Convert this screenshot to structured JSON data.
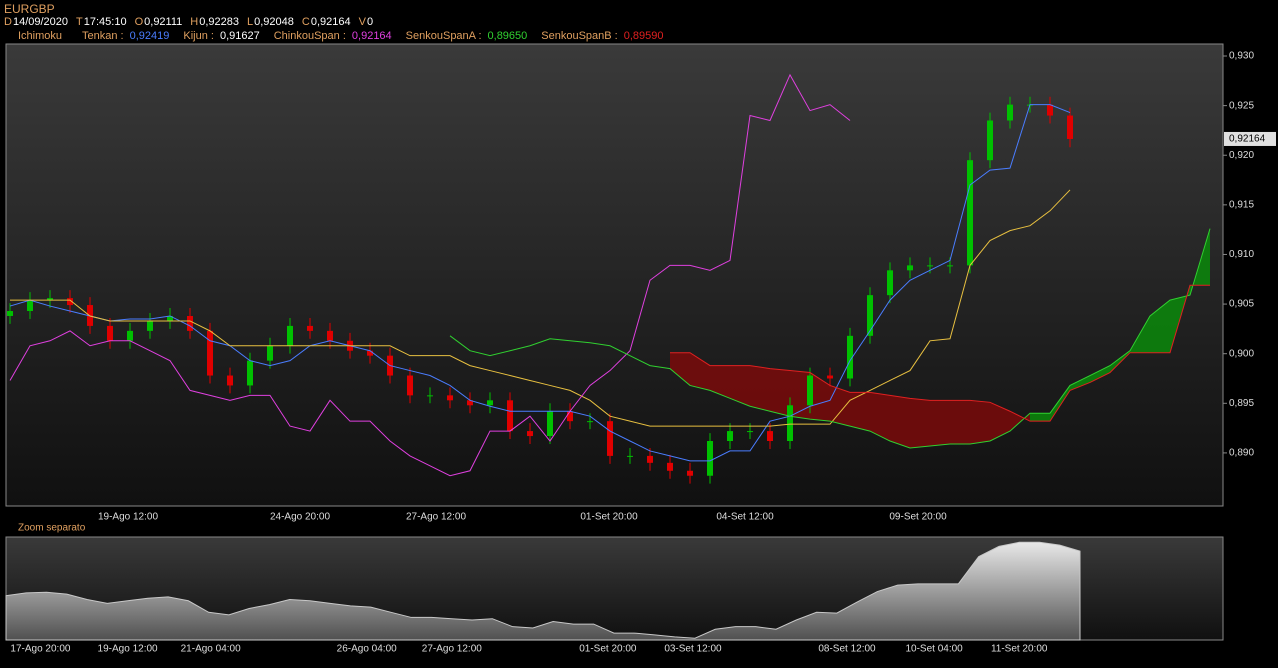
{
  "header": {
    "symbol": "EURGBP",
    "fields": [
      {
        "key": "D",
        "value": "14/09/2020"
      },
      {
        "key": "T",
        "value": "17:45:10"
      },
      {
        "key": "O",
        "value": "0,92111"
      },
      {
        "key": "H",
        "value": "0,92283"
      },
      {
        "key": "L",
        "value": "0,92048"
      },
      {
        "key": "C",
        "value": "0,92164"
      },
      {
        "key": "V",
        "value": "0"
      }
    ]
  },
  "legend": {
    "title": "Ichimoku",
    "items": [
      {
        "label": "Tenkan :",
        "value": "0,92419",
        "color": "#4a7dff",
        "text_color": "#4a7dff",
        "values": [
          0.9048,
          0.9054,
          0.9048,
          0.9043,
          0.9038,
          0.9033,
          0.9035,
          0.9035,
          0.9038,
          0.9028,
          0.9013,
          0.9008,
          0.8993,
          0.8988,
          0.8993,
          0.9008,
          0.9013,
          0.9008,
          0.9003,
          0.8988,
          0.8983,
          0.8978,
          0.8968,
          0.8953,
          0.8947,
          0.8942,
          0.8942,
          0.8942,
          0.8942,
          0.8937,
          0.8922,
          0.8912,
          0.8902,
          0.8897,
          0.8892,
          0.8892,
          0.8902,
          0.8902,
          0.8932,
          0.8937,
          0.8947,
          0.8953,
          0.8993,
          0.9023,
          0.9054,
          0.9074,
          0.9084,
          0.9094,
          0.917,
          0.9185,
          0.9187,
          0.9251,
          0.9251,
          0.9243,
          null,
          null,
          null,
          null,
          null,
          null,
          null
        ]
      },
      {
        "label": "Kijun :",
        "value": "0,91627",
        "color": "#e8c040",
        "text_color": "#ffffff",
        "values": [
          0.9054,
          0.9054,
          0.9054,
          0.9054,
          0.9038,
          0.9033,
          0.9033,
          0.9033,
          0.9033,
          0.9033,
          0.9023,
          0.9008,
          0.9008,
          0.9008,
          0.9008,
          0.9008,
          0.9008,
          0.9008,
          0.9008,
          0.9008,
          0.8998,
          0.8998,
          0.8998,
          0.8988,
          0.8983,
          0.8978,
          0.8973,
          0.8968,
          0.8963,
          0.8953,
          0.8937,
          0.8932,
          0.8927,
          0.8927,
          0.8927,
          0.8927,
          0.8927,
          0.8927,
          0.8927,
          0.8929,
          0.8929,
          0.8929,
          0.8953,
          0.8963,
          0.8973,
          0.8983,
          0.9013,
          0.9015,
          0.9089,
          0.9114,
          0.9124,
          0.9129,
          0.9144,
          0.9165,
          null,
          null,
          null,
          null,
          null,
          null,
          null
        ]
      },
      {
        "label": "ChinkouSpan :",
        "value": "0,92164",
        "color": "#e040e0",
        "text_color": "#e040e0",
        "values": [
          0.8973,
          0.9008,
          0.9013,
          0.9023,
          0.9008,
          0.9013,
          0.9013,
          0.9003,
          0.8993,
          0.8963,
          0.8958,
          0.8953,
          0.8958,
          0.8958,
          0.8927,
          0.8922,
          0.8953,
          0.8932,
          0.8932,
          0.8912,
          0.8897,
          0.8887,
          0.8877,
          0.8882,
          0.8922,
          0.8922,
          0.8937,
          0.8912,
          0.8942,
          0.8968,
          0.8983,
          0.9003,
          0.9074,
          0.9089,
          0.9089,
          0.9084,
          0.9094,
          0.924,
          0.9235,
          0.9281,
          0.9245,
          0.9251,
          0.9235,
          null,
          null,
          null,
          null,
          null,
          null,
          null,
          null,
          null,
          null,
          null,
          null,
          null,
          null,
          null,
          null,
          null,
          null
        ]
      },
      {
        "label": "SenkouSpanA :",
        "value": "0,89650",
        "color": "#30d030",
        "text_color": "#30d030",
        "values": [
          null,
          null,
          null,
          null,
          null,
          null,
          null,
          null,
          null,
          null,
          null,
          null,
          null,
          null,
          null,
          null,
          null,
          null,
          null,
          null,
          null,
          null,
          0.9018,
          0.9003,
          0.8998,
          0.9003,
          0.9008,
          0.9015,
          0.9013,
          0.9011,
          0.9008,
          0.8998,
          0.8988,
          0.8985,
          0.8968,
          0.8963,
          0.8955,
          0.8947,
          0.8942,
          0.8937,
          0.8934,
          0.8932,
          0.8927,
          0.8922,
          0.8912,
          0.8905,
          0.8907,
          0.8909,
          0.8909,
          0.8912,
          0.8922,
          0.894,
          0.894,
          0.8968,
          0.8978,
          0.8988,
          0.9003,
          0.9038,
          0.9054,
          0.9059,
          0.9126
        ]
      },
      {
        "label": "SenkouSpanB :",
        "value": "0,89590",
        "color": "#e02020",
        "text_color": "#e02020",
        "values": [
          null,
          null,
          null,
          null,
          null,
          null,
          null,
          null,
          null,
          null,
          null,
          null,
          null,
          null,
          null,
          null,
          null,
          null,
          null,
          null,
          null,
          null,
          null,
          null,
          null,
          null,
          null,
          null,
          null,
          null,
          null,
          null,
          null,
          0.9001,
          0.9001,
          0.8988,
          0.8988,
          0.8988,
          0.8985,
          0.8983,
          0.8981,
          0.8968,
          0.8961,
          0.8961,
          0.8958,
          0.8955,
          0.8953,
          0.8953,
          0.8953,
          0.8951,
          0.8942,
          0.8932,
          0.8932,
          0.8963,
          0.8971,
          0.8981,
          0.9001,
          0.9001,
          0.9001,
          0.9069,
          0.9069
        ]
      }
    ]
  },
  "chart_data": {
    "type": "candlestick",
    "up_color": "#00c000",
    "down_color": "#e00000",
    "cloud_colors": {
      "up": "#0a8a0a",
      "down": "#7a0a0a"
    },
    "open": [
      0.9038,
      0.9043,
      0.9054,
      0.9056,
      0.9049,
      0.9028,
      0.9013,
      0.9023,
      0.9033,
      0.9038,
      0.9023,
      0.8978,
      0.8968,
      0.8993,
      0.9008,
      0.9028,
      0.9023,
      0.9013,
      0.9003,
      0.8998,
      0.8978,
      0.8958,
      0.8958,
      0.8953,
      0.8948,
      0.8953,
      0.8922,
      0.8917,
      0.8942,
      0.8932,
      0.8932,
      0.8897,
      0.8897,
      0.889,
      0.8882,
      0.8877,
      0.8912,
      0.8922,
      0.8922,
      0.8912,
      0.8948,
      0.8978,
      0.8975,
      0.9018,
      0.9059,
      0.9084,
      0.9089,
      0.9089,
      0.9089,
      0.9195,
      0.9235,
      0.9251,
      0.9251,
      0.924
    ],
    "high": [
      0.9051,
      0.9062,
      0.9064,
      0.9064,
      0.9057,
      0.9036,
      0.9031,
      0.9041,
      0.9046,
      0.9046,
      0.9031,
      0.8986,
      0.9001,
      0.9016,
      0.9036,
      0.9036,
      0.9031,
      0.9021,
      0.9011,
      0.9006,
      0.8986,
      0.8966,
      0.8966,
      0.8961,
      0.8961,
      0.8961,
      0.893,
      0.895,
      0.895,
      0.894,
      0.894,
      0.8905,
      0.8905,
      0.8898,
      0.889,
      0.892,
      0.893,
      0.893,
      0.893,
      0.8956,
      0.8986,
      0.8986,
      0.9026,
      0.9067,
      0.9092,
      0.9097,
      0.9097,
      0.9097,
      0.9203,
      0.9243,
      0.9259,
      0.9259,
      0.9259,
      0.9248
    ],
    "low": [
      0.903,
      0.9035,
      0.9046,
      0.9041,
      0.902,
      0.9005,
      0.9005,
      0.9015,
      0.9025,
      0.9015,
      0.897,
      0.896,
      0.896,
      0.8985,
      0.9,
      0.9015,
      0.9005,
      0.8995,
      0.899,
      0.897,
      0.895,
      0.895,
      0.8945,
      0.894,
      0.894,
      0.8914,
      0.8909,
      0.8909,
      0.8924,
      0.8924,
      0.8889,
      0.8889,
      0.8882,
      0.8874,
      0.8869,
      0.8869,
      0.8904,
      0.8914,
      0.8904,
      0.8904,
      0.894,
      0.8967,
      0.8967,
      0.901,
      0.9051,
      0.9076,
      0.9081,
      0.9081,
      0.9081,
      0.9187,
      0.9227,
      0.9243,
      0.9232,
      0.9208
    ],
    "close": [
      0.9043,
      0.9054,
      0.9056,
      0.9049,
      0.9028,
      0.9013,
      0.9023,
      0.9033,
      0.9038,
      0.9023,
      0.8978,
      0.8968,
      0.8993,
      0.9008,
      0.9028,
      0.9023,
      0.9013,
      0.9003,
      0.8998,
      0.8978,
      0.8958,
      0.8958,
      0.8953,
      0.8948,
      0.8953,
      0.8922,
      0.8917,
      0.8942,
      0.8932,
      0.8932,
      0.8897,
      0.8897,
      0.889,
      0.8882,
      0.8877,
      0.8912,
      0.8922,
      0.8922,
      0.8912,
      0.8948,
      0.8978,
      0.8975,
      0.9018,
      0.9059,
      0.9084,
      0.9089,
      0.9089,
      0.9089,
      0.9195,
      0.9235,
      0.9251,
      0.9251,
      0.924,
      0.92164
    ],
    "ylim": [
      0.88465,
      0.93121
    ],
    "yticks": [
      {
        "value": 0.89,
        "label": "0,890"
      },
      {
        "value": 0.895,
        "label": "0,895"
      },
      {
        "value": 0.9,
        "label": "0,900"
      },
      {
        "value": 0.905,
        "label": "0,905"
      },
      {
        "value": 0.91,
        "label": "0,910"
      },
      {
        "value": 0.915,
        "label": "0,915"
      },
      {
        "value": 0.92,
        "label": "0,920"
      },
      {
        "value": 0.925,
        "label": "0,925"
      },
      {
        "value": 0.93,
        "label": "0,930"
      }
    ],
    "last_price": {
      "value": 0.92164,
      "label": "0,92164"
    },
    "xticks": [
      {
        "value": 5.9,
        "label": "19-Ago 12:00"
      },
      {
        "value": 14.5,
        "label": "24-Ago 20:00"
      },
      {
        "value": 21.3,
        "label": "27-Ago 12:00"
      },
      {
        "value": 29.95,
        "label": "01-Set 20:00"
      },
      {
        "value": 36.75,
        "label": "04-Set 12:00"
      },
      {
        "value": 45.4,
        "label": "09-Set 20:00"
      }
    ]
  },
  "zoom": {
    "type": "area",
    "label": "Zoom separato",
    "ylim": [
      0.887,
      0.926
    ],
    "color": "#c8c8c8",
    "xticks": [
      {
        "value": 1.7,
        "label": "17-Ago 20:00"
      },
      {
        "value": 6.0,
        "label": "19-Ago 12:00"
      },
      {
        "value": 10.1,
        "label": "21-Ago 04:00"
      },
      {
        "value": 17.8,
        "label": "26-Ago 04:00"
      },
      {
        "value": 22.0,
        "label": "27-Ago 12:00"
      },
      {
        "value": 29.7,
        "label": "01-Set 20:00"
      },
      {
        "value": 33.9,
        "label": "03-Set 12:00"
      },
      {
        "value": 41.5,
        "label": "08-Set 12:00"
      },
      {
        "value": 45.8,
        "label": "10-Set 04:00"
      },
      {
        "value": 50.0,
        "label": "11-Set 20:00"
      }
    ]
  }
}
